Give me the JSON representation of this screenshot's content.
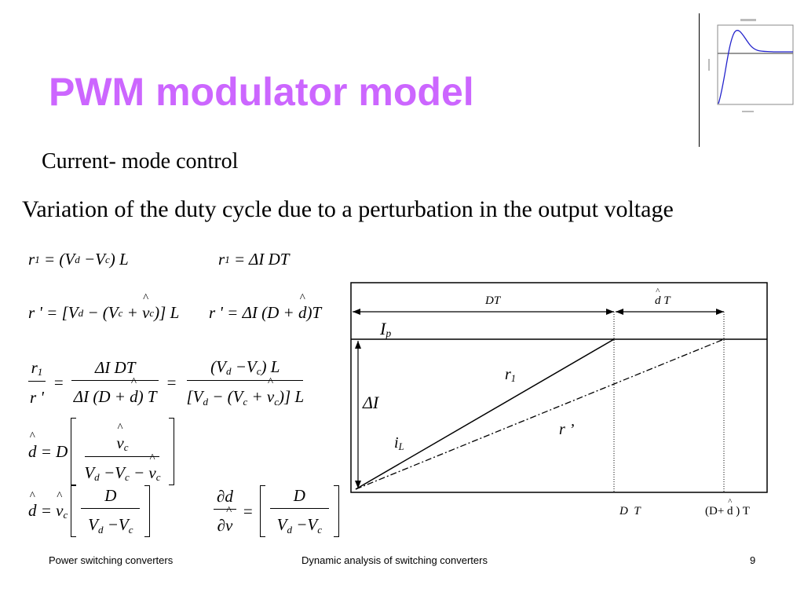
{
  "slide": {
    "title": "PWM modulator model",
    "subtitle": "Current- mode control",
    "description": "Variation of the duty cycle due to a perturbation in the output voltage",
    "page_number": "9"
  },
  "equations": {
    "eq1": "r_{1} = (V_{d} −V_{c}) L",
    "eq2": "r_{1} = ΔI DT",
    "eq3": "r ' = [V_{d} − (V_{c} + \\hat{v}_{c})] L",
    "eq4": "r ' = ΔI (D + \\hat{d})T",
    "eq5": {
      "lhs_num": "r_{1}",
      "lhs_den": "r '",
      "mid_num": "ΔI DT",
      "mid_den": "ΔI (D + \\hat{d}) T",
      "rhs_num": "(V_{d} −V_{c}) L",
      "rhs_den": "[V_{d} − (V_{c} + \\hat{v}_{c})] L"
    },
    "eq6": {
      "lhs": "\\hat{d} = D",
      "num": "\\hat{v}_{c}",
      "den": "V_{d} −V_{c} − \\hat{v}_{c}"
    },
    "eq7": {
      "lhs": "\\hat{d} = \\hat{v}_{c}",
      "num": "D",
      "den": "V_{d} −V_{c}"
    },
    "eq8": {
      "lhs_num": "∂d",
      "lhs_den": "∂\\hat{v}",
      "num": "D",
      "den": "V_{d} −V_{c}"
    }
  },
  "diagram": {
    "label_DT_span": "DT",
    "label_dhatT_span": "\\hat{d} T",
    "label_Ip": "I_{p}",
    "label_r1": "r_{1}",
    "label_deltaI": "ΔI",
    "label_rprime": "r ’",
    "label_iL": "i_{L}",
    "label_DT_axis": "D  T",
    "label_DdT_axis": "(D+ \\hat{d} ) T"
  },
  "footer": {
    "left": "Power switching converters",
    "center": "Dynamic analysis of switching converters"
  },
  "colors": {
    "title": "#cc66ff",
    "thumbnail_curve": "#2222cc"
  }
}
